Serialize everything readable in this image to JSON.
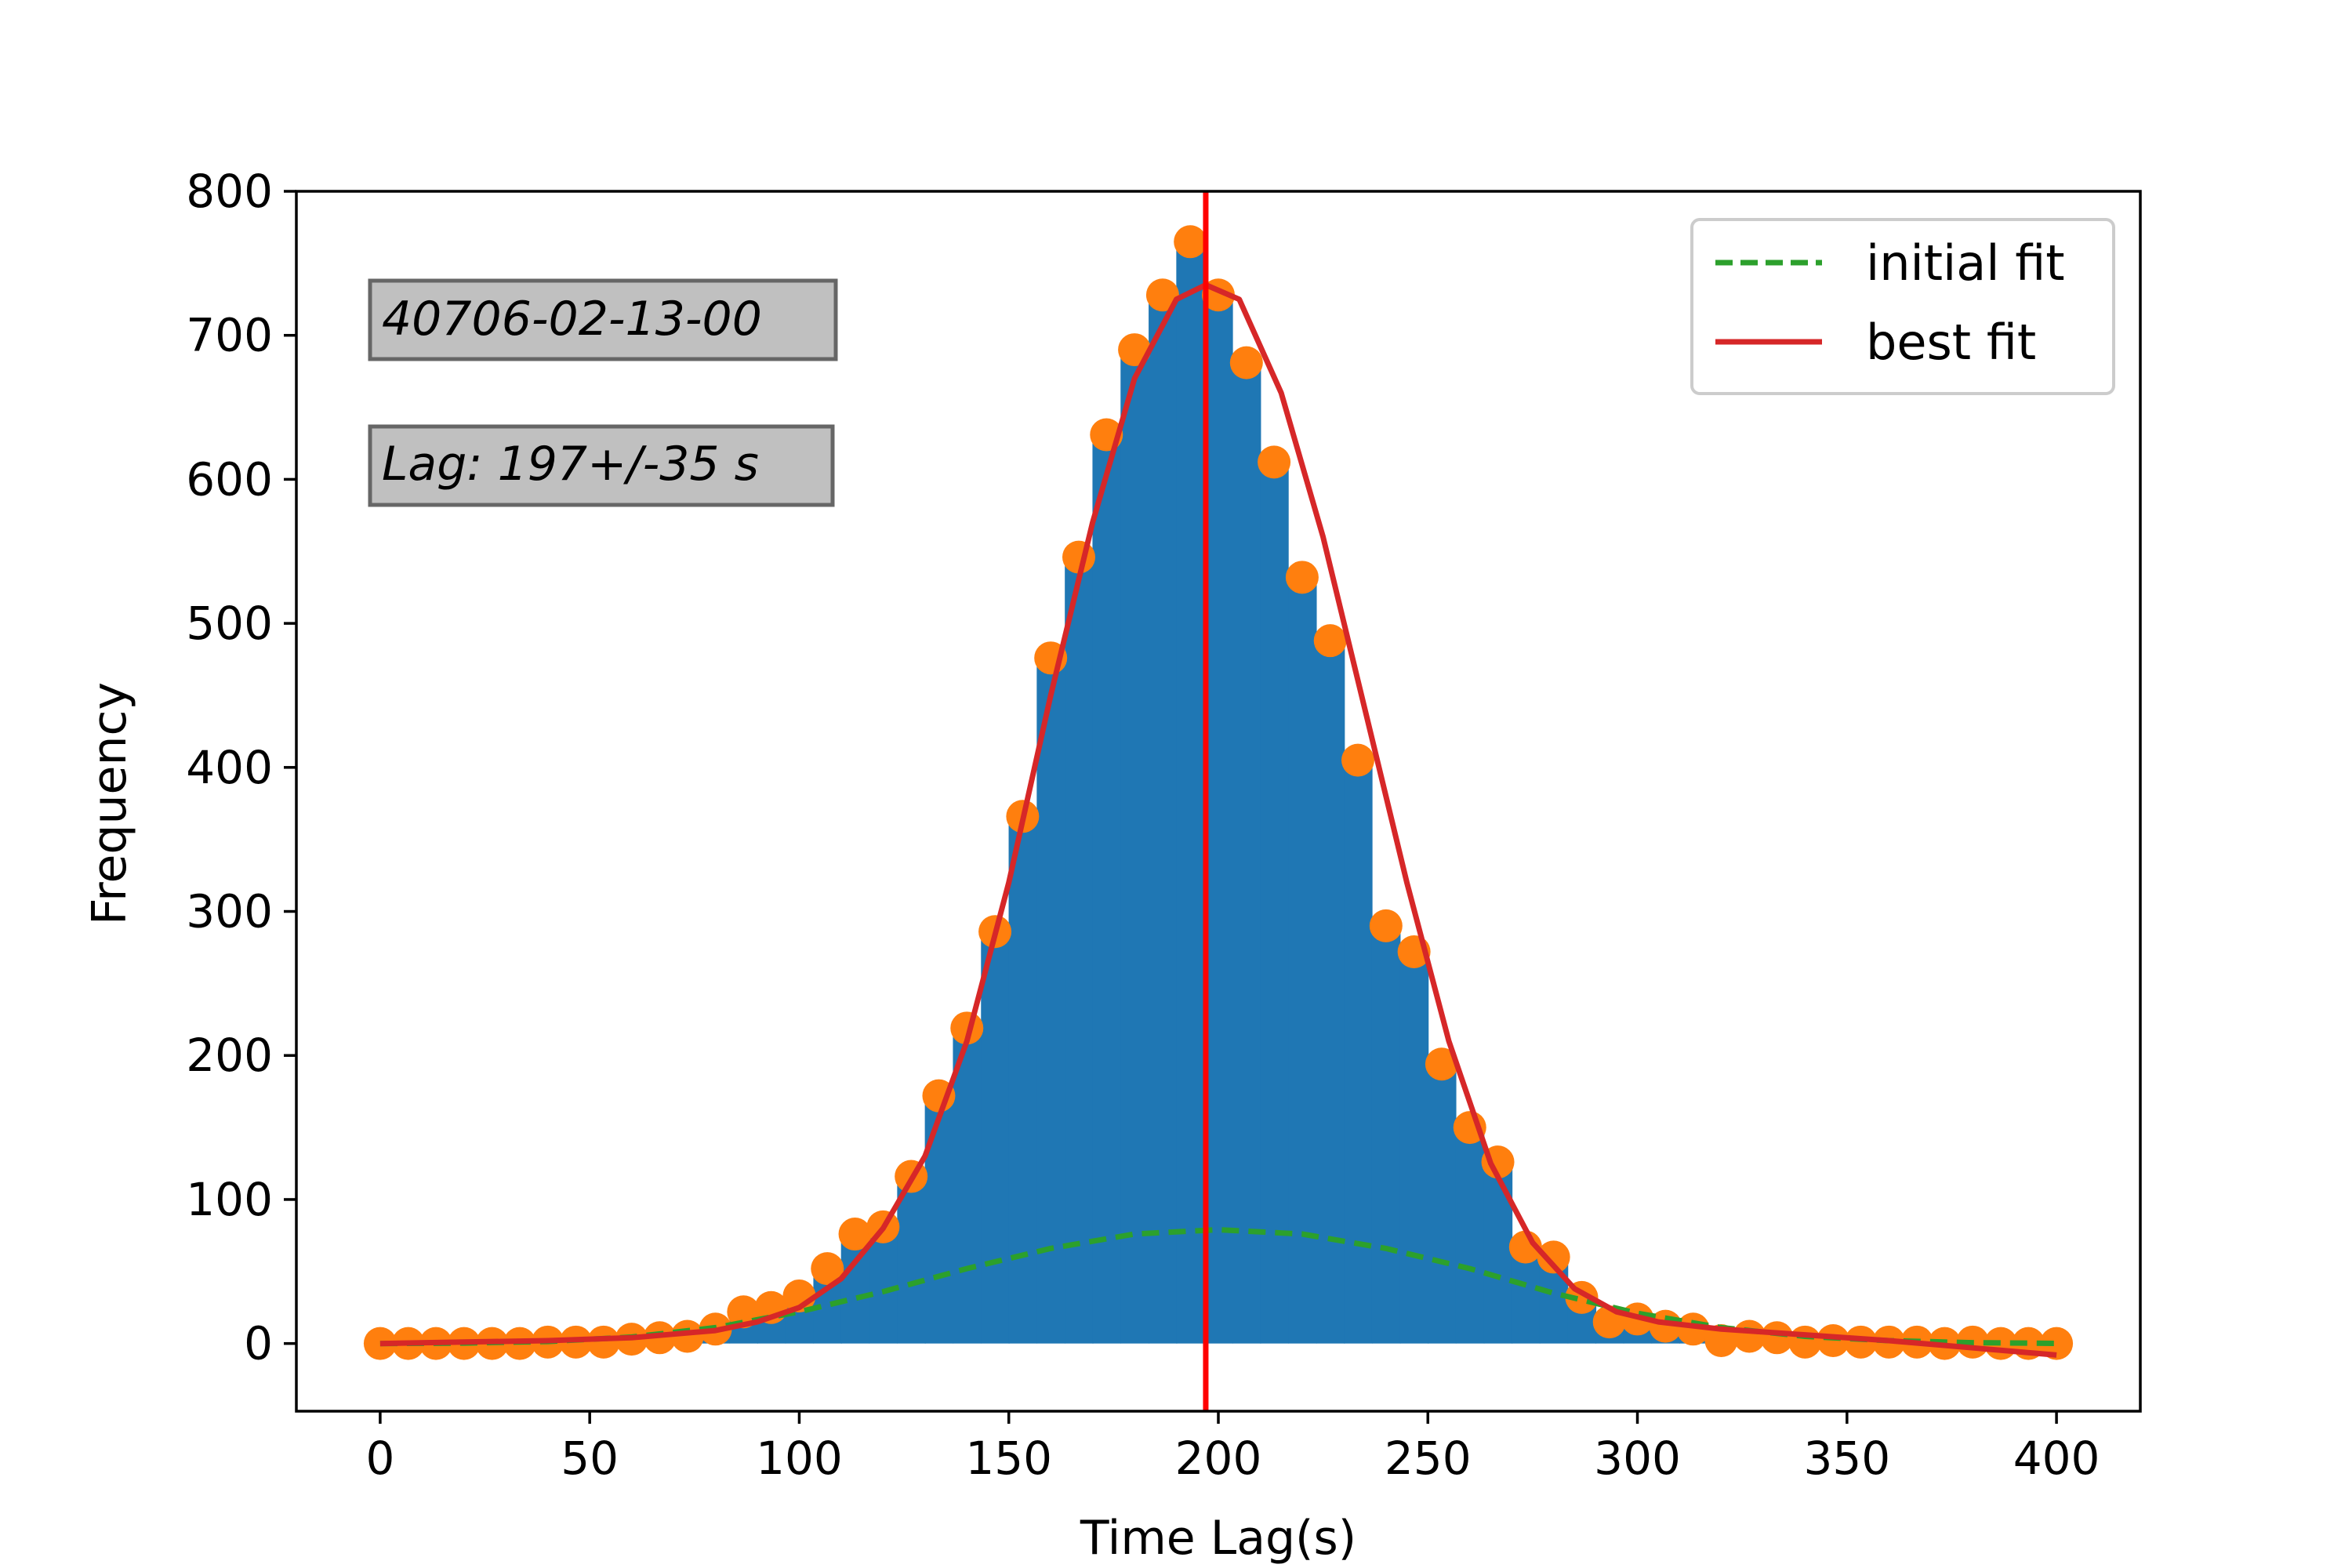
{
  "chart_data": {
    "type": "bar",
    "title": "",
    "xlabel": "Time Lag(s)",
    "ylabel": "Frequency",
    "xlim": [
      -20,
      420
    ],
    "ylim": [
      -47,
      800
    ],
    "xticks": [
      0,
      50,
      100,
      150,
      200,
      250,
      300,
      350,
      400
    ],
    "yticks": [
      0,
      100,
      200,
      300,
      400,
      500,
      600,
      700,
      800
    ],
    "grid": false,
    "legend": {
      "location": "top-right",
      "entries": [
        {
          "label": "initial fit",
          "style": "dashed",
          "color": "#2ca02c"
        },
        {
          "label": "best fit",
          "style": "solid",
          "color": "#d62728"
        }
      ]
    },
    "annotations": [
      {
        "text": "40706-02-13-00"
      },
      {
        "text": "Lag: 197+/-35 s"
      }
    ],
    "vertical_line": {
      "x": 197,
      "color": "#ff0000"
    },
    "histogram": {
      "color": "#1f77b4",
      "bin_width": 6.67,
      "x": [
        0,
        6.7,
        13.3,
        20,
        26.7,
        33.3,
        40,
        46.7,
        53.3,
        60,
        66.7,
        73.3,
        80,
        86.7,
        93.3,
        100,
        106.7,
        113.3,
        120,
        126.7,
        133.3,
        140,
        146.7,
        153.3,
        160,
        166.7,
        173.3,
        180,
        186.7,
        193.3,
        200,
        206.7,
        213.3,
        220,
        226.7,
        233.3,
        240,
        246.7,
        253.3,
        260,
        266.7,
        273.3,
        280,
        286.7,
        293.3,
        300,
        306.7,
        313.3,
        320,
        326.7,
        333.3,
        340,
        346.7,
        353.3,
        360,
        366.7,
        373.3,
        380,
        386.7,
        393.3,
        400
      ],
      "values": [
        0,
        0,
        0,
        0,
        0,
        0,
        1,
        1,
        1,
        3,
        4,
        5,
        10,
        22,
        25,
        33,
        52,
        76,
        81,
        116,
        172,
        219,
        286,
        366,
        476,
        546,
        631,
        690,
        728,
        765,
        728,
        681,
        612,
        532,
        488,
        405,
        290,
        272,
        194,
        150,
        126,
        67,
        60,
        32,
        15,
        17,
        12,
        10,
        2,
        5,
        4,
        1,
        2,
        1,
        1,
        1,
        0,
        1,
        0,
        0,
        0
      ]
    },
    "series": [
      {
        "name": "initial fit",
        "color": "#2ca02c",
        "style": "dashed",
        "x": [
          0,
          20,
          40,
          60,
          80,
          100,
          120,
          140,
          160,
          180,
          200,
          220,
          240,
          260,
          280,
          300,
          320,
          340,
          360,
          380,
          400
        ],
        "y": [
          0,
          0.3,
          1.4,
          4.5,
          11,
          22,
          36,
          52,
          66,
          76,
          79,
          76,
          66,
          52,
          35,
          21,
          11,
          5,
          2,
          0.6,
          0.1
        ]
      },
      {
        "name": "best fit",
        "color": "#d62728",
        "style": "solid",
        "x": [
          0,
          20,
          40,
          60,
          80,
          90,
          100,
          110,
          120,
          130,
          140,
          150,
          160,
          170,
          180,
          190,
          197,
          205,
          215,
          225,
          235,
          245,
          255,
          265,
          275,
          285,
          295,
          305,
          320,
          340,
          360,
          380,
          400
        ],
        "y": [
          0,
          1,
          2,
          4,
          9,
          15,
          25,
          45,
          80,
          130,
          210,
          320,
          450,
          570,
          670,
          725,
          735,
          725,
          660,
          560,
          440,
          320,
          210,
          125,
          70,
          38,
          22,
          15,
          10,
          6,
          2,
          -3,
          -8
        ]
      }
    ]
  }
}
